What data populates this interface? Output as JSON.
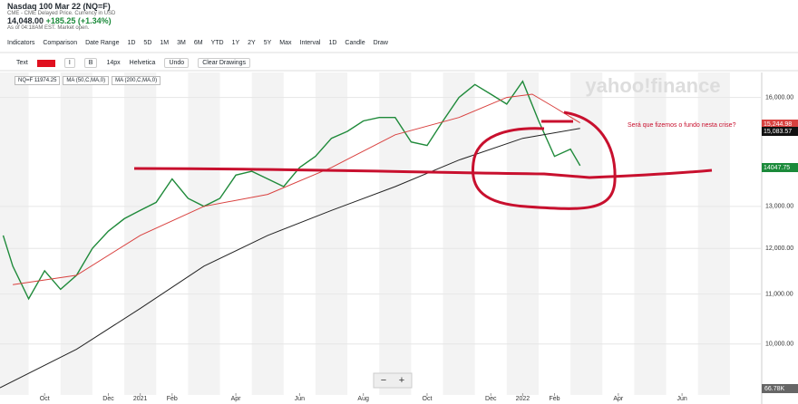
{
  "header": {
    "title": "Nasdaq 100 Mar 22 (NQ=F)",
    "subtitle": "CME - CME Delayed Price. Currency in USD",
    "price": "14,048.00",
    "change": "+185.25",
    "percent": "(+1.34%)",
    "as_of": "As of 04:18AM EST. Market open."
  },
  "toolbar": {
    "items": [
      "Indicators",
      "Comparison",
      "Date Range",
      "1D",
      "5D",
      "1M",
      "3M",
      "6M",
      "YTD",
      "1Y",
      "2Y",
      "5Y",
      "Max",
      "Interval",
      "1D",
      "Candle",
      "Draw"
    ]
  },
  "draw_toolbar": {
    "items": [
      "Text",
      "I",
      "B",
      "14px",
      "Helvetica",
      "Undo",
      "Clear Drawings"
    ]
  },
  "legend_chips": [
    "NQ=F 11974.25",
    "MA (50,C,MA,0)",
    "MA (200,C,MA,0)"
  ],
  "watermark": "yahoo!finance",
  "price_tags": [
    "15,244.98",
    "15,083.57",
    "14047.75"
  ],
  "volume_label": "66.78K",
  "zoom": [
    "−",
    "+"
  ],
  "chart_data": {
    "type": "line",
    "log_scale": true,
    "grid": true,
    "annotation": "Será que fizemos o fundo nesta crise?",
    "xlim": [
      -0.4,
      23.5
    ],
    "xticks": [
      {
        "value": 1,
        "label": "Oct"
      },
      {
        "value": 3,
        "label": "Dec"
      },
      {
        "value": 4,
        "label": "2021"
      },
      {
        "value": 5,
        "label": "Feb"
      },
      {
        "value": 7,
        "label": "Apr"
      },
      {
        "value": 9,
        "label": "Jun"
      },
      {
        "value": 11,
        "label": "Aug"
      },
      {
        "value": 13,
        "label": "Oct"
      },
      {
        "value": 15,
        "label": "Dec"
      },
      {
        "value": 16,
        "label": "2022"
      },
      {
        "value": 17,
        "label": "Feb"
      },
      {
        "value": 19,
        "label": "Apr"
      },
      {
        "value": 21,
        "label": "Jun"
      }
    ],
    "ylim": [
      9170,
      16780
    ],
    "yticks": [
      {
        "value": 10000,
        "label": "10,000.00"
      },
      {
        "value": 11000,
        "label": "11,000.00"
      },
      {
        "value": 12000,
        "label": "12,000.00"
      },
      {
        "value": 13000,
        "label": "13,000.00"
      },
      {
        "value": 16000,
        "label": "16,000.00"
      }
    ],
    "series": [
      {
        "name": "NQ=F",
        "color": "#1f8a3a",
        "x": [
          -0.3,
          0,
          0.5,
          1,
          1.5,
          2,
          2.5,
          3,
          3.5,
          4,
          4.5,
          5,
          5.5,
          6,
          6.5,
          7,
          7.5,
          8,
          8.5,
          9,
          9.5,
          10,
          10.5,
          11,
          11.5,
          12,
          12.5,
          13,
          13.5,
          14,
          14.5,
          15,
          15.5,
          16,
          16.5,
          17,
          17.5,
          17.8
        ],
        "values": [
          12300,
          11600,
          10900,
          11500,
          11100,
          11400,
          12000,
          12400,
          12700,
          12900,
          13100,
          13700,
          13200,
          13000,
          13200,
          13800,
          13900,
          13700,
          13500,
          14000,
          14300,
          14800,
          15000,
          15300,
          15400,
          15400,
          14700,
          14600,
          15300,
          16000,
          16400,
          16100,
          15800,
          16500,
          15300,
          14300,
          14500,
          14048
        ]
      },
      {
        "name": "MA (50,C,MA,0)",
        "color": "#d9413f",
        "x": [
          0,
          2,
          4,
          6,
          8,
          10,
          12,
          14,
          15.5,
          16.3,
          17,
          17.8
        ],
        "values": [
          11200,
          11400,
          12300,
          13000,
          13300,
          14000,
          14900,
          15400,
          16000,
          16100,
          15700,
          15245
        ]
      },
      {
        "name": "MA (200,C,MA,0)",
        "color": "#222222",
        "x": [
          -0.4,
          2,
          4,
          6,
          8,
          10,
          12,
          14,
          16,
          17.8
        ],
        "values": [
          9200,
          9900,
          10700,
          11600,
          12300,
          12900,
          13500,
          14200,
          14800,
          15084
        ]
      }
    ]
  }
}
